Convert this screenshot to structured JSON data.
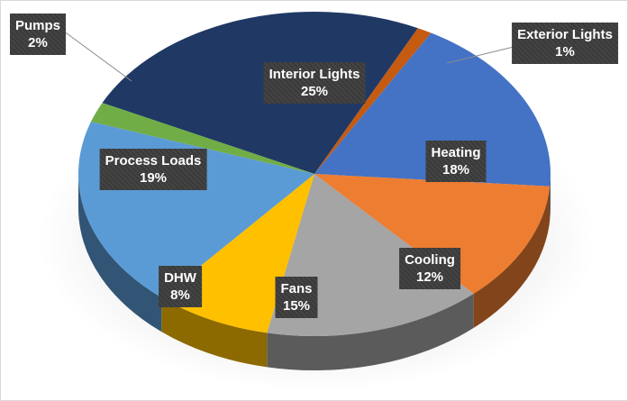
{
  "chart_data": {
    "type": "pie",
    "title": "",
    "three_d": true,
    "start_slice": "Interior Lights",
    "direction": "clockwise",
    "slices": [
      {
        "name": "Interior Lights",
        "value": 25,
        "label": "25%",
        "color": "#203864"
      },
      {
        "name": "Exterior Lights",
        "value": 1,
        "label": "1%",
        "color": "#c55a11"
      },
      {
        "name": "Heating",
        "value": 18,
        "label": "18%",
        "color": "#4472c4"
      },
      {
        "name": "Cooling",
        "value": 12,
        "label": "12%",
        "color": "#ed7d31"
      },
      {
        "name": "Fans",
        "value": 15,
        "label": "15%",
        "color": "#a5a5a5"
      },
      {
        "name": "DHW",
        "value": 8,
        "label": "8%",
        "color": "#ffc000"
      },
      {
        "name": "Process Loads",
        "value": 19,
        "label": "19%",
        "color": "#5b9bd5"
      },
      {
        "name": "Pumps",
        "value": 2,
        "label": "2%",
        "color": "#70ad47"
      }
    ]
  }
}
